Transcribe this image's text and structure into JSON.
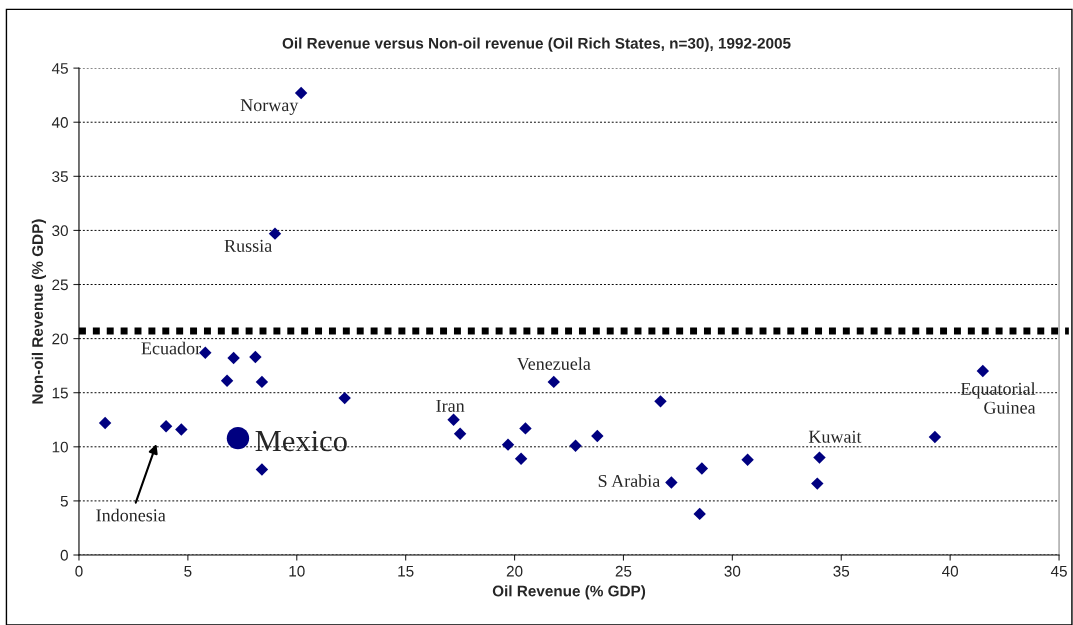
{
  "chart_data": {
    "type": "scatter",
    "title": "Oil Revenue versus Non-oil revenue (Oil Rich States, n=30), 1992-2005",
    "xlabel": "Oil Revenue (% GDP)",
    "ylabel": "Non-oil Revenue (% GDP)",
    "series": [
      {
        "color": "#000080",
        "marker": "diamond",
        "x": [
          1.2,
          4.0,
          4.7,
          5.8,
          6.8,
          7.1,
          8.1,
          8.4,
          8.4,
          12.2,
          10.2,
          9.0,
          17.2,
          17.5,
          19.7,
          20.3,
          20.5,
          21.8,
          22.8,
          23.8,
          26.7,
          27.2,
          28.5,
          28.6,
          30.7,
          33.9,
          34.0,
          39.3,
          41.5
        ],
        "values": [
          12.2,
          11.9,
          11.6,
          18.7,
          16.1,
          18.2,
          18.3,
          16.0,
          7.9,
          14.5,
          42.7,
          29.7,
          12.5,
          11.2,
          10.2,
          8.9,
          11.7,
          16.0,
          10.1,
          11.0,
          14.2,
          6.7,
          3.8,
          8.0,
          8.8,
          6.6,
          9.0,
          10.9,
          17.0
        ]
      },
      {
        "color": "#000080",
        "marker": "circle",
        "x": [
          7.3
        ],
        "values": [
          10.8
        ]
      }
    ],
    "ref_lines": [
      {
        "axis": "y",
        "value": 20.7,
        "color": "#000000",
        "line_style": "dotted"
      }
    ],
    "annotations": [
      {
        "text": "Norway",
        "x": 10.2,
        "y": 42.7
      },
      {
        "text": "Russia",
        "x": 9.0,
        "y": 29.7
      },
      {
        "text": "Ecuador",
        "x": 5.8,
        "y": 18.7
      },
      "Indonesia",
      {
        "text": "Mexico",
        "x": 7.3,
        "y": 10.8
      },
      {
        "text": "Iran",
        "x": 17.2,
        "y": 12.5
      },
      {
        "text": "Venezuela",
        "x": 21.8,
        "y": 16.0
      },
      {
        "text": "S Arabia",
        "x": 27.2,
        "y": 6.7
      },
      {
        "text": "Kuwait",
        "x": 34.0,
        "y": 9.0
      },
      {
        "text": "Equatorial\nGuinea",
        "x": 41.5,
        "y": 17.0
      }
    ],
    "xlim": [
      0,
      45
    ],
    "xticks": [
      0,
      5,
      10,
      15,
      20,
      25,
      30,
      35,
      40,
      45
    ],
    "ylim": [
      0,
      45
    ],
    "yticks": [
      0,
      5,
      10,
      15,
      20,
      25,
      30,
      35,
      40,
      45
    ],
    "grid": "y"
  }
}
